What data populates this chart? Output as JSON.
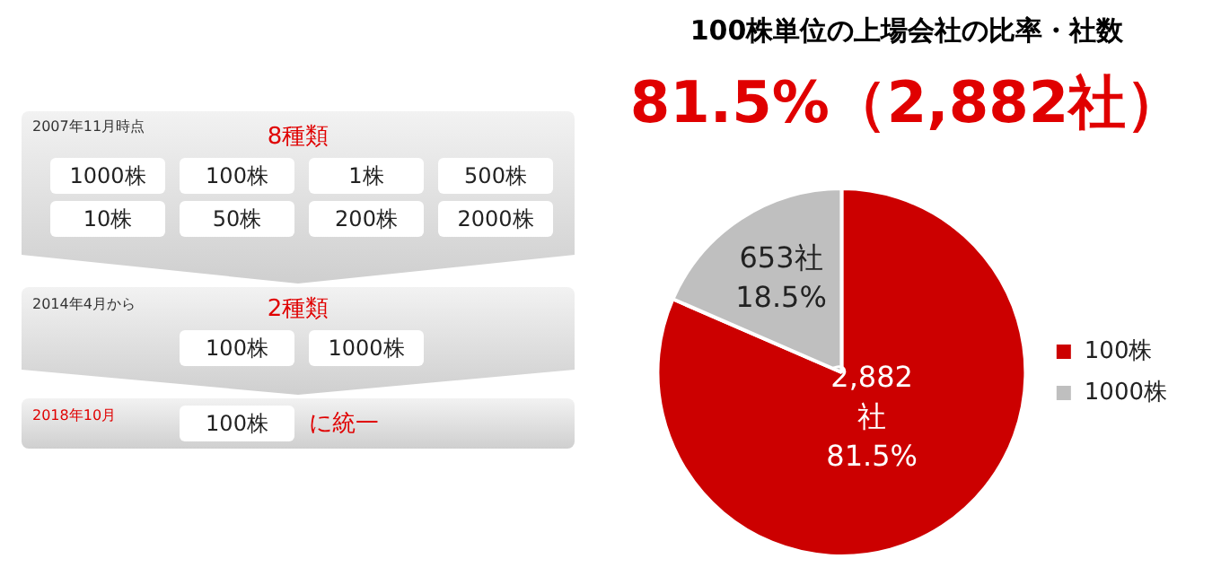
{
  "chart_data": [
    {
      "type": "other",
      "annotations": [
        "2007年11月時点",
        "8種類",
        "1000株",
        "100株",
        "1株",
        "500株",
        "10株",
        "50株",
        "200株",
        "2000株",
        "2014年4月から",
        "2種類",
        "100株",
        "1000株",
        "2018年10月",
        "100株",
        "に統一"
      ]
    },
    {
      "type": "pie",
      "title": "100株単位の上場会社の比率・社数",
      "subtitle": "81.5%（2,882社）",
      "categories": [
        "100株",
        "1000株"
      ],
      "values": [
        2882,
        653
      ],
      "colors": [
        "#cc0000",
        "#bfbfbf"
      ],
      "value_labels": [
        "2,882\n社\n81.5%",
        "653社\n18.5%"
      ],
      "legend": "right"
    }
  ]
}
